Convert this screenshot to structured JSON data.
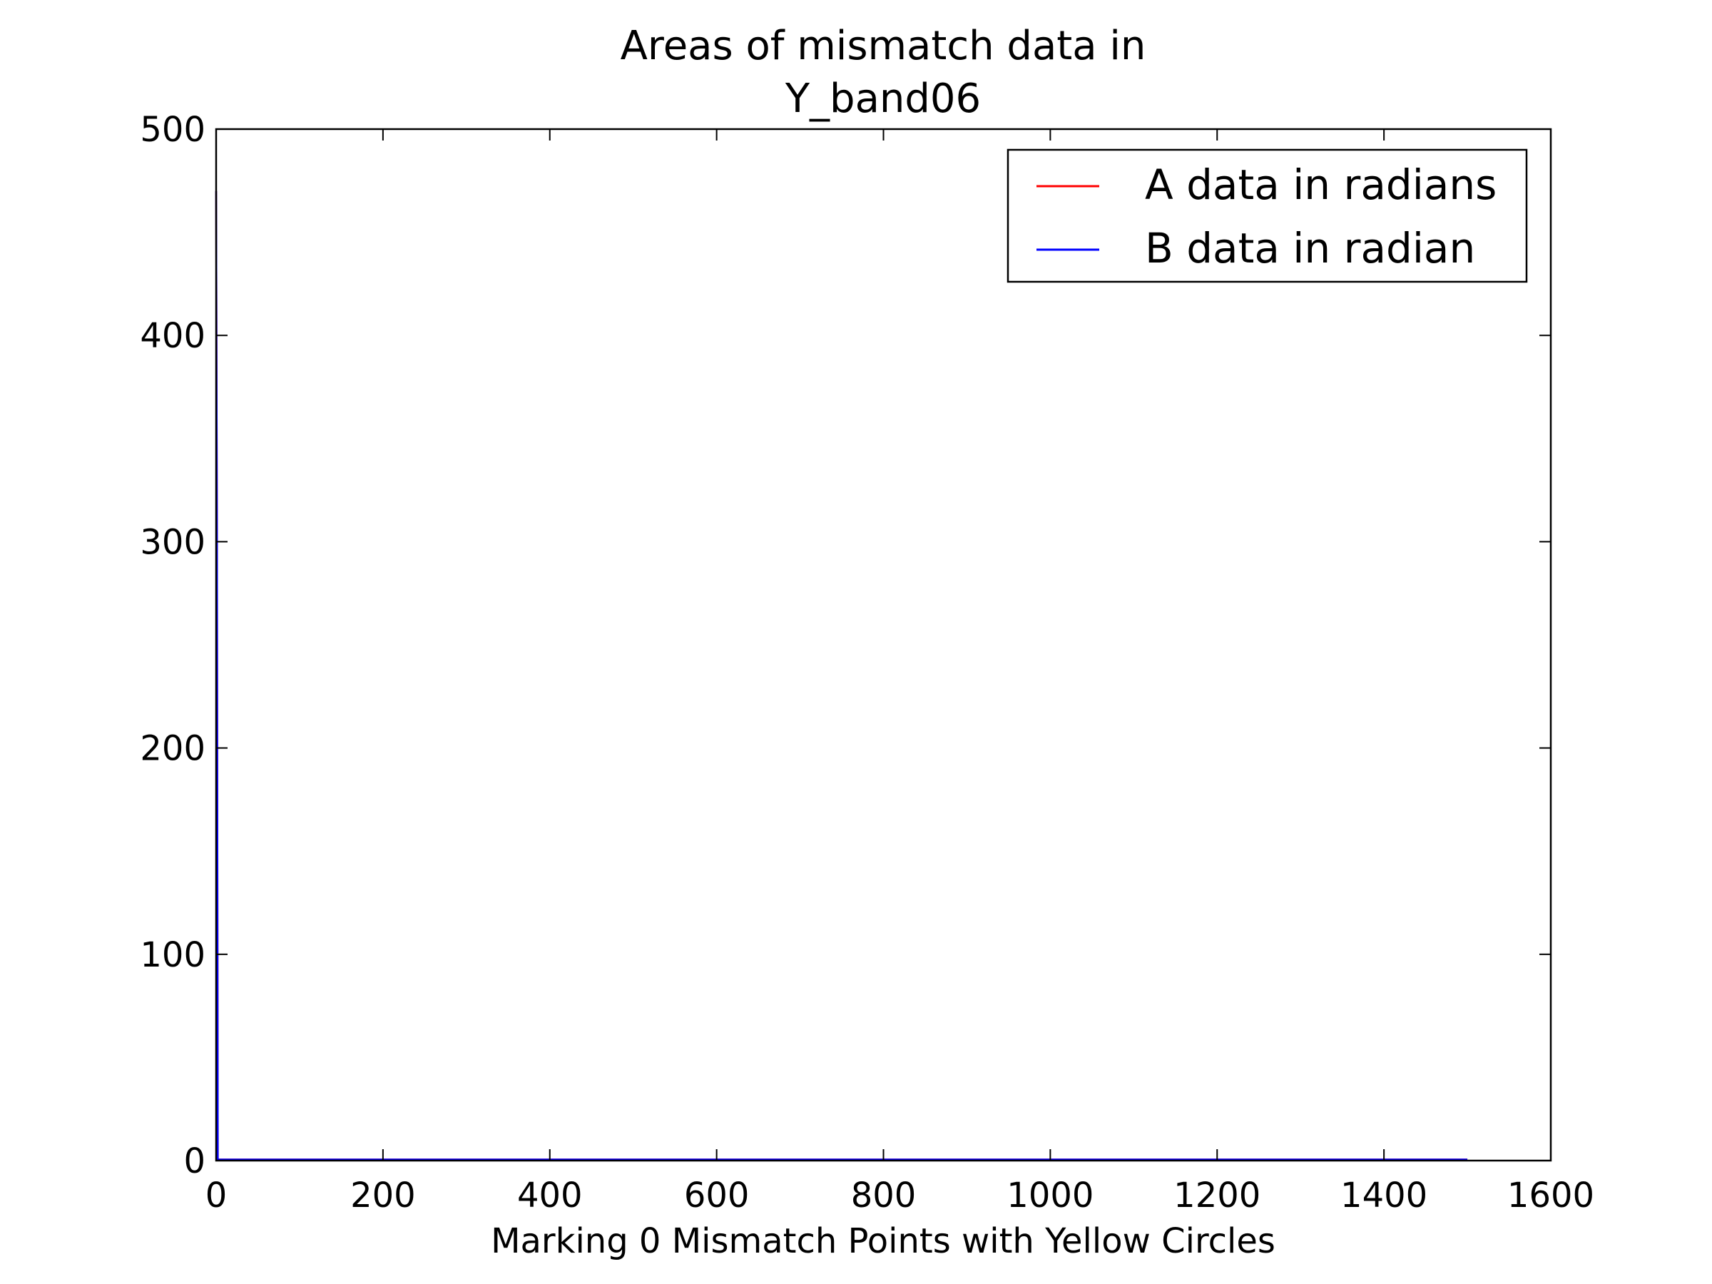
{
  "chart_data": {
    "type": "line",
    "title_lines": [
      "Areas of mismatch data in",
      "Y_band06"
    ],
    "xlabel": "Marking 0 Mismatch Points with Yellow Circles",
    "ylabel": "",
    "xlim": [
      0,
      1600
    ],
    "ylim": [
      0,
      500
    ],
    "x_ticks": [
      0,
      200,
      400,
      600,
      800,
      1000,
      1200,
      1400,
      1600
    ],
    "y_ticks": [
      0,
      100,
      200,
      300,
      400,
      500
    ],
    "grid": false,
    "legend_position": "top-right",
    "series": [
      {
        "name": "A data in radians",
        "color": "#ff0000",
        "x": [
          0,
          1,
          2,
          3,
          1500
        ],
        "y": [
          470,
          300,
          0.5,
          0.5,
          0.5
        ]
      },
      {
        "name": "B data in radian",
        "color": "#0000ff",
        "x": [
          0,
          1,
          2,
          3,
          1500
        ],
        "y": [
          470,
          300,
          0.5,
          0.5,
          0.5
        ]
      }
    ]
  }
}
